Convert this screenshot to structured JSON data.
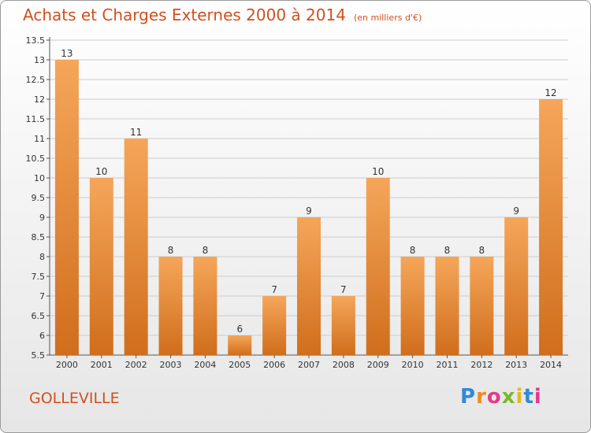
{
  "header": {
    "title": "Achats et Charges Externes 2000 à 2014",
    "unit": "(en milliers d'€)"
  },
  "footer": {
    "commune": "GOLLEVILLE",
    "logo": "Proxiti"
  },
  "colors": {
    "title": "#d24f1e",
    "bar_top": "#f5a65a",
    "bar_bottom": "#d06e1c",
    "grid": "#cccccc"
  },
  "chart_data": {
    "type": "bar",
    "title": "Achats et Charges Externes 2000 à 2014",
    "subtitle": "(en milliers d'€)",
    "categories": [
      "2000",
      "2001",
      "2002",
      "2003",
      "2004",
      "2005",
      "2006",
      "2007",
      "2008",
      "2009",
      "2010",
      "2011",
      "2012",
      "2013",
      "2014"
    ],
    "values": [
      13,
      10,
      11,
      8,
      8,
      6,
      7,
      9,
      7,
      10,
      8,
      8,
      8,
      9,
      12
    ],
    "ylim": [
      5.5,
      13.5
    ],
    "yticks": [
      "5.5",
      "6",
      "6.5",
      "7",
      "7.5",
      "8",
      "8.5",
      "9",
      "9.5",
      "10",
      "10.5",
      "11",
      "11.5",
      "12",
      "12.5",
      "13",
      "13.5"
    ],
    "grid": true,
    "xlabel": "",
    "ylabel": ""
  }
}
